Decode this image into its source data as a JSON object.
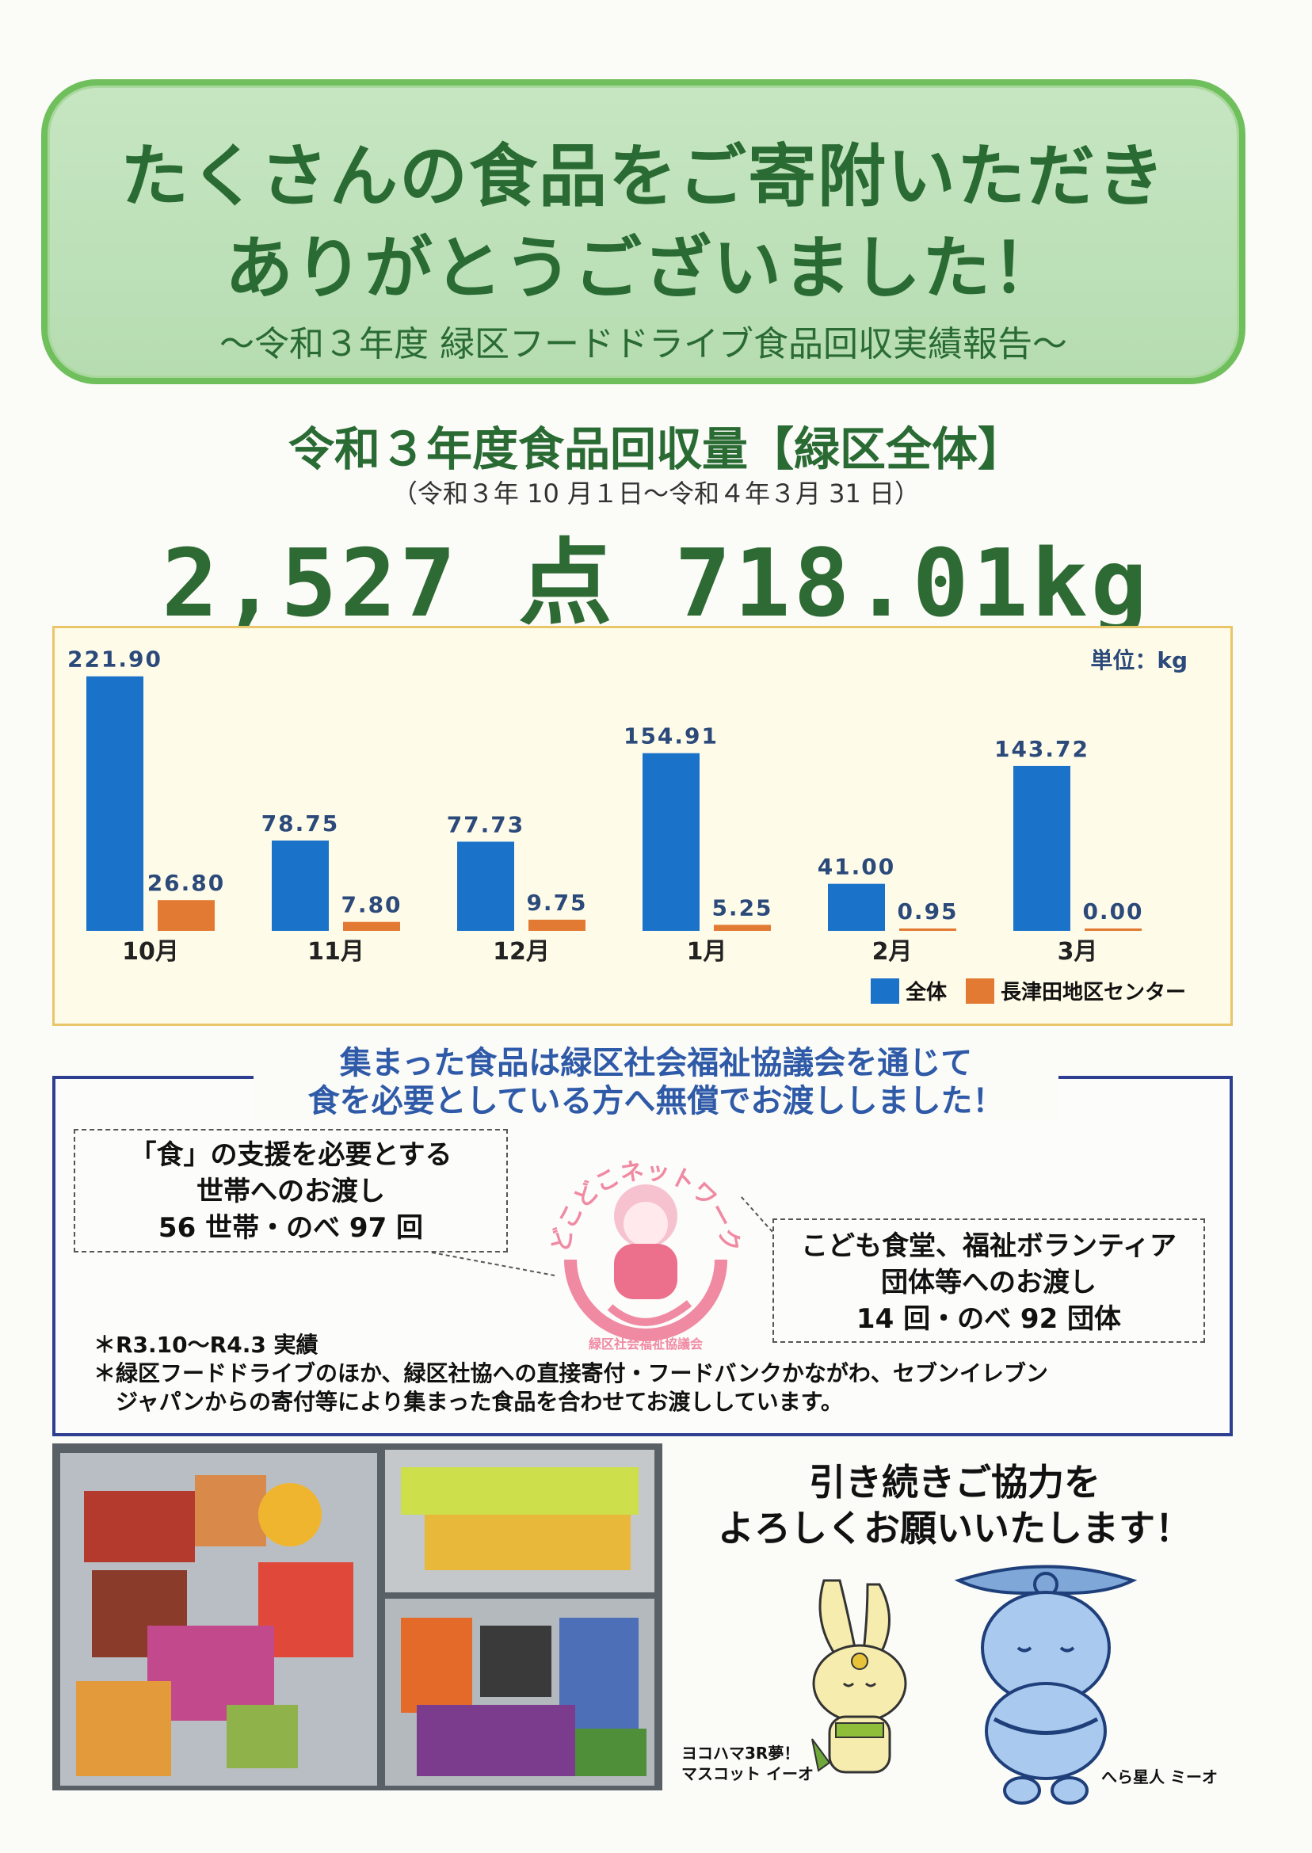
{
  "header": {
    "line1": "たくさんの食品をご寄附いただき",
    "line2": "ありがとうございました！",
    "subtitle": "〜令和３年度 緑区フードドライブ食品回収実績報告〜"
  },
  "summary": {
    "title": "令和３年度食品回収量【緑区全体】",
    "period": "（令和３年 10 月１日〜令和４年３月 31 日）",
    "total": "2,527 点 718.01kg"
  },
  "chart_data": {
    "type": "bar",
    "unit_label": "単位：kg",
    "categories": [
      "10月",
      "11月",
      "12月",
      "1月",
      "2月",
      "3月"
    ],
    "series": [
      {
        "name": "全体",
        "values": [
          221.9,
          78.75,
          77.73,
          154.91,
          41.0,
          143.72
        ],
        "labels": [
          "221.90",
          "78.75",
          "77.73",
          "154.91",
          "41.00",
          "143.72"
        ],
        "color": "#1a73c9"
      },
      {
        "name": "長津田地区センター",
        "values": [
          26.8,
          7.8,
          9.75,
          5.25,
          0.95,
          0.0
        ],
        "labels": [
          "26.80",
          "7.80",
          "9.75",
          "5.25",
          "0.95",
          "0.00"
        ],
        "color": "#e37a33"
      }
    ],
    "ylim": [
      0,
      230
    ],
    "legend": "bottom-right"
  },
  "distribution": {
    "headline_1": "集まった食品は緑区社会福祉協議会を通じて",
    "headline_2": "食を必要としている方へ無償でお渡ししました！",
    "left_1": "「食」の支援を必要とする",
    "left_2": "世帯へのお渡し",
    "left_3": "56 世帯・のべ 97 回",
    "right_1": "こども食堂、福祉ボランティア",
    "right_2": "団体等へのお渡し",
    "right_3": "14 回・のべ 92 団体",
    "logo_top": "どこどこネットワーク",
    "logo_bottom": "緑区社会福祉協議会",
    "note_1": "＊R3.10〜R4.3 実績",
    "note_2": "＊緑区フードドライブのほか、緑区社協への直接寄付・フードバンクかながわ、セブンイレブン",
    "note_3": "　ジャパンからの寄付等により集まった食品を合わせてお渡ししています。"
  },
  "footer": {
    "thanks_1": "引き続きご協力を",
    "thanks_2": "よろしくお願いいたします！",
    "mascot_left_caption_1": "ヨコハマ3R夢！",
    "mascot_left_caption_2": "マスコット イーオ",
    "mascot_right_caption": "へら星人 ミーオ"
  }
}
